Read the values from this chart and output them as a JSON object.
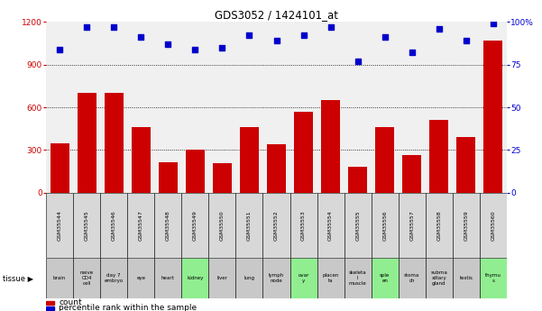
{
  "title": "GDS3052 / 1424101_at",
  "samples": [
    "GSM35544",
    "GSM35545",
    "GSM35546",
    "GSM35547",
    "GSM35548",
    "GSM35549",
    "GSM35550",
    "GSM35551",
    "GSM35552",
    "GSM35553",
    "GSM35554",
    "GSM35555",
    "GSM35556",
    "GSM35557",
    "GSM35558",
    "GSM35559",
    "GSM35560"
  ],
  "counts": [
    350,
    700,
    700,
    460,
    215,
    305,
    210,
    460,
    340,
    570,
    650,
    185,
    460,
    265,
    510,
    390,
    1070
  ],
  "percentiles": [
    84,
    97,
    97,
    91,
    87,
    84,
    85,
    92,
    89,
    92,
    97,
    77,
    91,
    82,
    96,
    89,
    99
  ],
  "tissues": [
    "brain",
    "naive\nCD4\ncell",
    "day 7\nembryо",
    "eye",
    "heart",
    "kidney",
    "liver",
    "lung",
    "lymph\nnode",
    "ovar\ny",
    "placen\nta",
    "skeleta\nl\nmuscle",
    "sple\nen",
    "stoma\nch",
    "subma\nxillary\ngland",
    "testis",
    "thymu\ns"
  ],
  "tissue_colors": [
    "#c8c8c8",
    "#c8c8c8",
    "#c8c8c8",
    "#c8c8c8",
    "#c8c8c8",
    "#90ee90",
    "#c8c8c8",
    "#c8c8c8",
    "#c8c8c8",
    "#90ee90",
    "#c8c8c8",
    "#c8c8c8",
    "#90ee90",
    "#c8c8c8",
    "#c8c8c8",
    "#c8c8c8",
    "#90ee90"
  ],
  "sample_box_color": "#d8d8d8",
  "bar_color": "#cc0000",
  "dot_color": "#0000cc",
  "ylim_left": [
    0,
    1200
  ],
  "ylim_right": [
    0,
    100
  ],
  "yticks_left": [
    0,
    300,
    600,
    900,
    1200
  ],
  "yticks_right": [
    0,
    25,
    50,
    75,
    100
  ],
  "chart_bg": "#f0f0f0"
}
